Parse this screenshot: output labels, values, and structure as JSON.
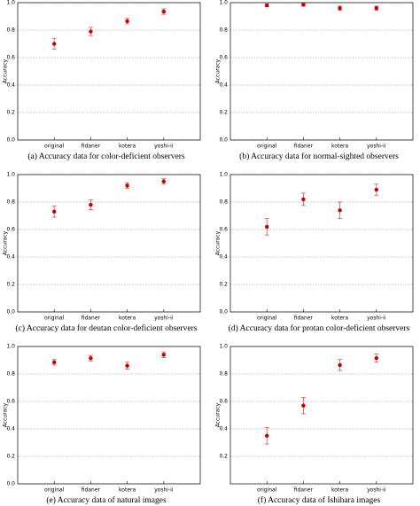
{
  "chart_data": [
    {
      "type": "errorbar",
      "title": "(a) Accuracy data for color-deficient observers",
      "y_label": "Accuracy",
      "categories": [
        "original",
        "fidaner",
        "kotera",
        "yoshi-ii"
      ],
      "values": [
        0.7,
        0.79,
        0.865,
        0.935
      ],
      "errors": [
        0.04,
        0.03,
        0.02,
        0.02
      ],
      "color": "#c00000",
      "error_color": "#e05050",
      "ylim": [
        0,
        1
      ],
      "yticks": [
        {
          "value": 0,
          "label": "0.0"
        },
        {
          "value": 0.2,
          "label": "0.2"
        },
        {
          "value": 0.4,
          "label": "0.4"
        },
        {
          "value": 0.6,
          "label": "0.6"
        },
        {
          "value": 0.8,
          "label": "0.8"
        },
        {
          "value": 1,
          "label": "1.0"
        }
      ],
      "grid": true
    },
    {
      "type": "errorbar",
      "title": "(b) Accuracy data for normal-sighted observers",
      "y_label": "Accuracy",
      "categories": [
        "original",
        "fidaner",
        "kotera",
        "yoshi-ii"
      ],
      "values": [
        0.98,
        0.985,
        0.96,
        0.96
      ],
      "errors": [
        0.01,
        0.01,
        0.015,
        0.015
      ],
      "color": "#c00000",
      "error_color": "#e05050",
      "ylim": [
        0,
        1
      ],
      "yticks": [
        {
          "value": 0,
          "label": "0.0"
        },
        {
          "value": 0.2,
          "label": "0.2"
        },
        {
          "value": 0.4,
          "label": "0.4"
        },
        {
          "value": 0.6,
          "label": "0.6"
        },
        {
          "value": 0.8,
          "label": "0.8"
        },
        {
          "value": 1,
          "label": "1.0"
        }
      ],
      "grid": true
    },
    {
      "type": "errorbar",
      "title": "(c) Accuracy data for deutan color-deficient observers",
      "y_label": "Accuracy",
      "categories": [
        "original",
        "fidaner",
        "kotera",
        "yoshi-ii"
      ],
      "values": [
        0.73,
        0.78,
        0.92,
        0.95
      ],
      "errors": [
        0.04,
        0.035,
        0.02,
        0.02
      ],
      "color": "#c00000",
      "error_color": "#e05050",
      "ylim": [
        0,
        1
      ],
      "yticks": [
        {
          "value": 0,
          "label": "0.0"
        },
        {
          "value": 0.2,
          "label": "0.2"
        },
        {
          "value": 0.4,
          "label": "0.4"
        },
        {
          "value": 0.6,
          "label": "0.6"
        },
        {
          "value": 0.8,
          "label": "0.8"
        },
        {
          "value": 1,
          "label": "1.0"
        }
      ],
      "grid": true
    },
    {
      "type": "errorbar",
      "title": "(d) Accuracy data for protan color-deficient observers",
      "y_label": "Accuracy",
      "categories": [
        "original",
        "fidaner",
        "kotera",
        "yoshi-ii"
      ],
      "values": [
        0.62,
        0.82,
        0.74,
        0.89
      ],
      "errors": [
        0.06,
        0.045,
        0.06,
        0.04
      ],
      "color": "#c00000",
      "error_color": "#e05050",
      "ylim": [
        0,
        1
      ],
      "yticks": [
        {
          "value": 0,
          "label": "0.0"
        },
        {
          "value": 0.2,
          "label": "0.2"
        },
        {
          "value": 0.4,
          "label": "0.4"
        },
        {
          "value": 0.6,
          "label": "0.6"
        },
        {
          "value": 0.8,
          "label": "0.8"
        },
        {
          "value": 1,
          "label": "1.0"
        }
      ],
      "grid": true
    },
    {
      "type": "errorbar",
      "title": "(e) Accuracy data of natural images",
      "y_label": "Accuracy",
      "categories": [
        "original",
        "fidaner",
        "kotera",
        "yoshi-ii"
      ],
      "values": [
        0.885,
        0.915,
        0.86,
        0.94
      ],
      "errors": [
        0.02,
        0.02,
        0.025,
        0.02
      ],
      "color": "#c00000",
      "error_color": "#e05050",
      "ylim": [
        0,
        1
      ],
      "yticks": [
        {
          "value": 0,
          "label": "0.0"
        },
        {
          "value": 0.2,
          "label": "0.2"
        },
        {
          "value": 0.4,
          "label": "0.4"
        },
        {
          "value": 0.6,
          "label": "0.6"
        },
        {
          "value": 0.8,
          "label": "0.8"
        },
        {
          "value": 1,
          "label": "1.0"
        }
      ],
      "grid": true
    },
    {
      "type": "errorbar",
      "title": "(f) Accuracy data of Ishihara images",
      "y_label": "Accuracy",
      "categories": [
        "original",
        "fidaner",
        "kotera",
        "yoshi-ii"
      ],
      "values": [
        0.35,
        0.57,
        0.865,
        0.915
      ],
      "errors": [
        0.06,
        0.06,
        0.04,
        0.03
      ],
      "color": "#c00000",
      "error_color": "#e05050",
      "ylim": [
        0,
        1
      ],
      "yticks": [
        {
          "value": 0.2,
          "label": "0.2"
        },
        {
          "value": 0.4,
          "label": "0.4"
        },
        {
          "value": 0.6,
          "label": "0.6"
        },
        {
          "value": 0.8,
          "label": "0.8"
        },
        {
          "value": 1,
          "label": "1.0"
        }
      ],
      "grid": true
    }
  ]
}
